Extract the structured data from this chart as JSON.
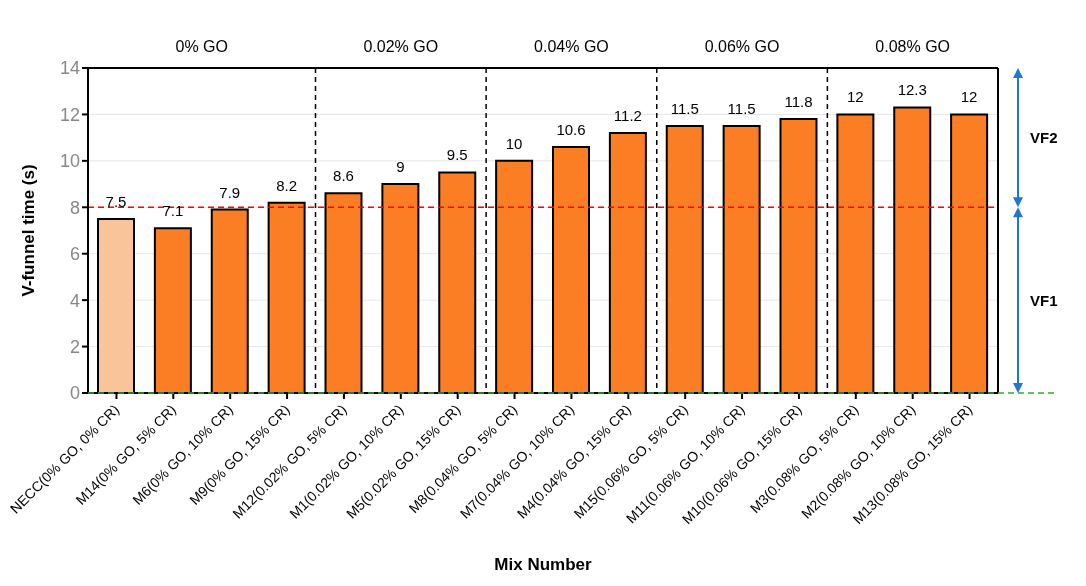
{
  "chart_data": {
    "type": "bar",
    "xlabel": "Mix Number",
    "ylabel": "V-funnel time (s)",
    "categories": [
      "NECC(0% GO, 0% CR)",
      "M14(0% GO, 5% CR)",
      "M6(0% GO, 10% CR)",
      "M9(0% GO, 15% CR)",
      "M12(0.02% GO, 5% CR)",
      "M1(0.02% GO, 10% CR)",
      "M5(0.02% GO, 15% CR)",
      "M8(0.04% GO, 5% CR)",
      "M7(0.04% GO, 10% CR)",
      "M4(0.04% GO, 15% CR)",
      "M15(0.06% GO, 5% CR)",
      "M11(0.06% GO, 10% CR)",
      "M10(0.06% GO, 15% CR)",
      "M3(0.08% GO, 5% CR)",
      "M2(0.08% GO, 10% CR)",
      "M13(0.08% GO, 15% CR)"
    ],
    "values": [
      7.5,
      7.1,
      7.9,
      8.2,
      8.6,
      9,
      9.5,
      10,
      10.6,
      11.2,
      11.5,
      11.5,
      11.8,
      12,
      12.3,
      12
    ],
    "colors": [
      "#f9c49a",
      "#fb7e24",
      "#fb7e24",
      "#fb7e24",
      "#fb7e24",
      "#fb7e24",
      "#fb7e24",
      "#fb7e24",
      "#fb7e24",
      "#fb7e24",
      "#fb7e24",
      "#fb7e24",
      "#fb7e24",
      "#fb7e24",
      "#fb7e24",
      "#fb7e24"
    ],
    "data_labels": true,
    "ylim": [
      0,
      14
    ],
    "yticks": [
      0,
      2,
      4,
      6,
      8,
      10,
      12,
      14
    ],
    "grid": "y",
    "ref_lines": [
      {
        "axis": "y",
        "value": 8,
        "color": "#ff0000",
        "line_style": "dashed"
      },
      {
        "axis": "y",
        "value": 0,
        "color": "#33aa33",
        "line_style": "dashed"
      }
    ],
    "annotations": [
      "0% GO",
      "0.02% GO",
      "0.04% GO",
      "0.06% GO",
      "0.08% GO",
      "VF2",
      "VF1"
    ]
  }
}
